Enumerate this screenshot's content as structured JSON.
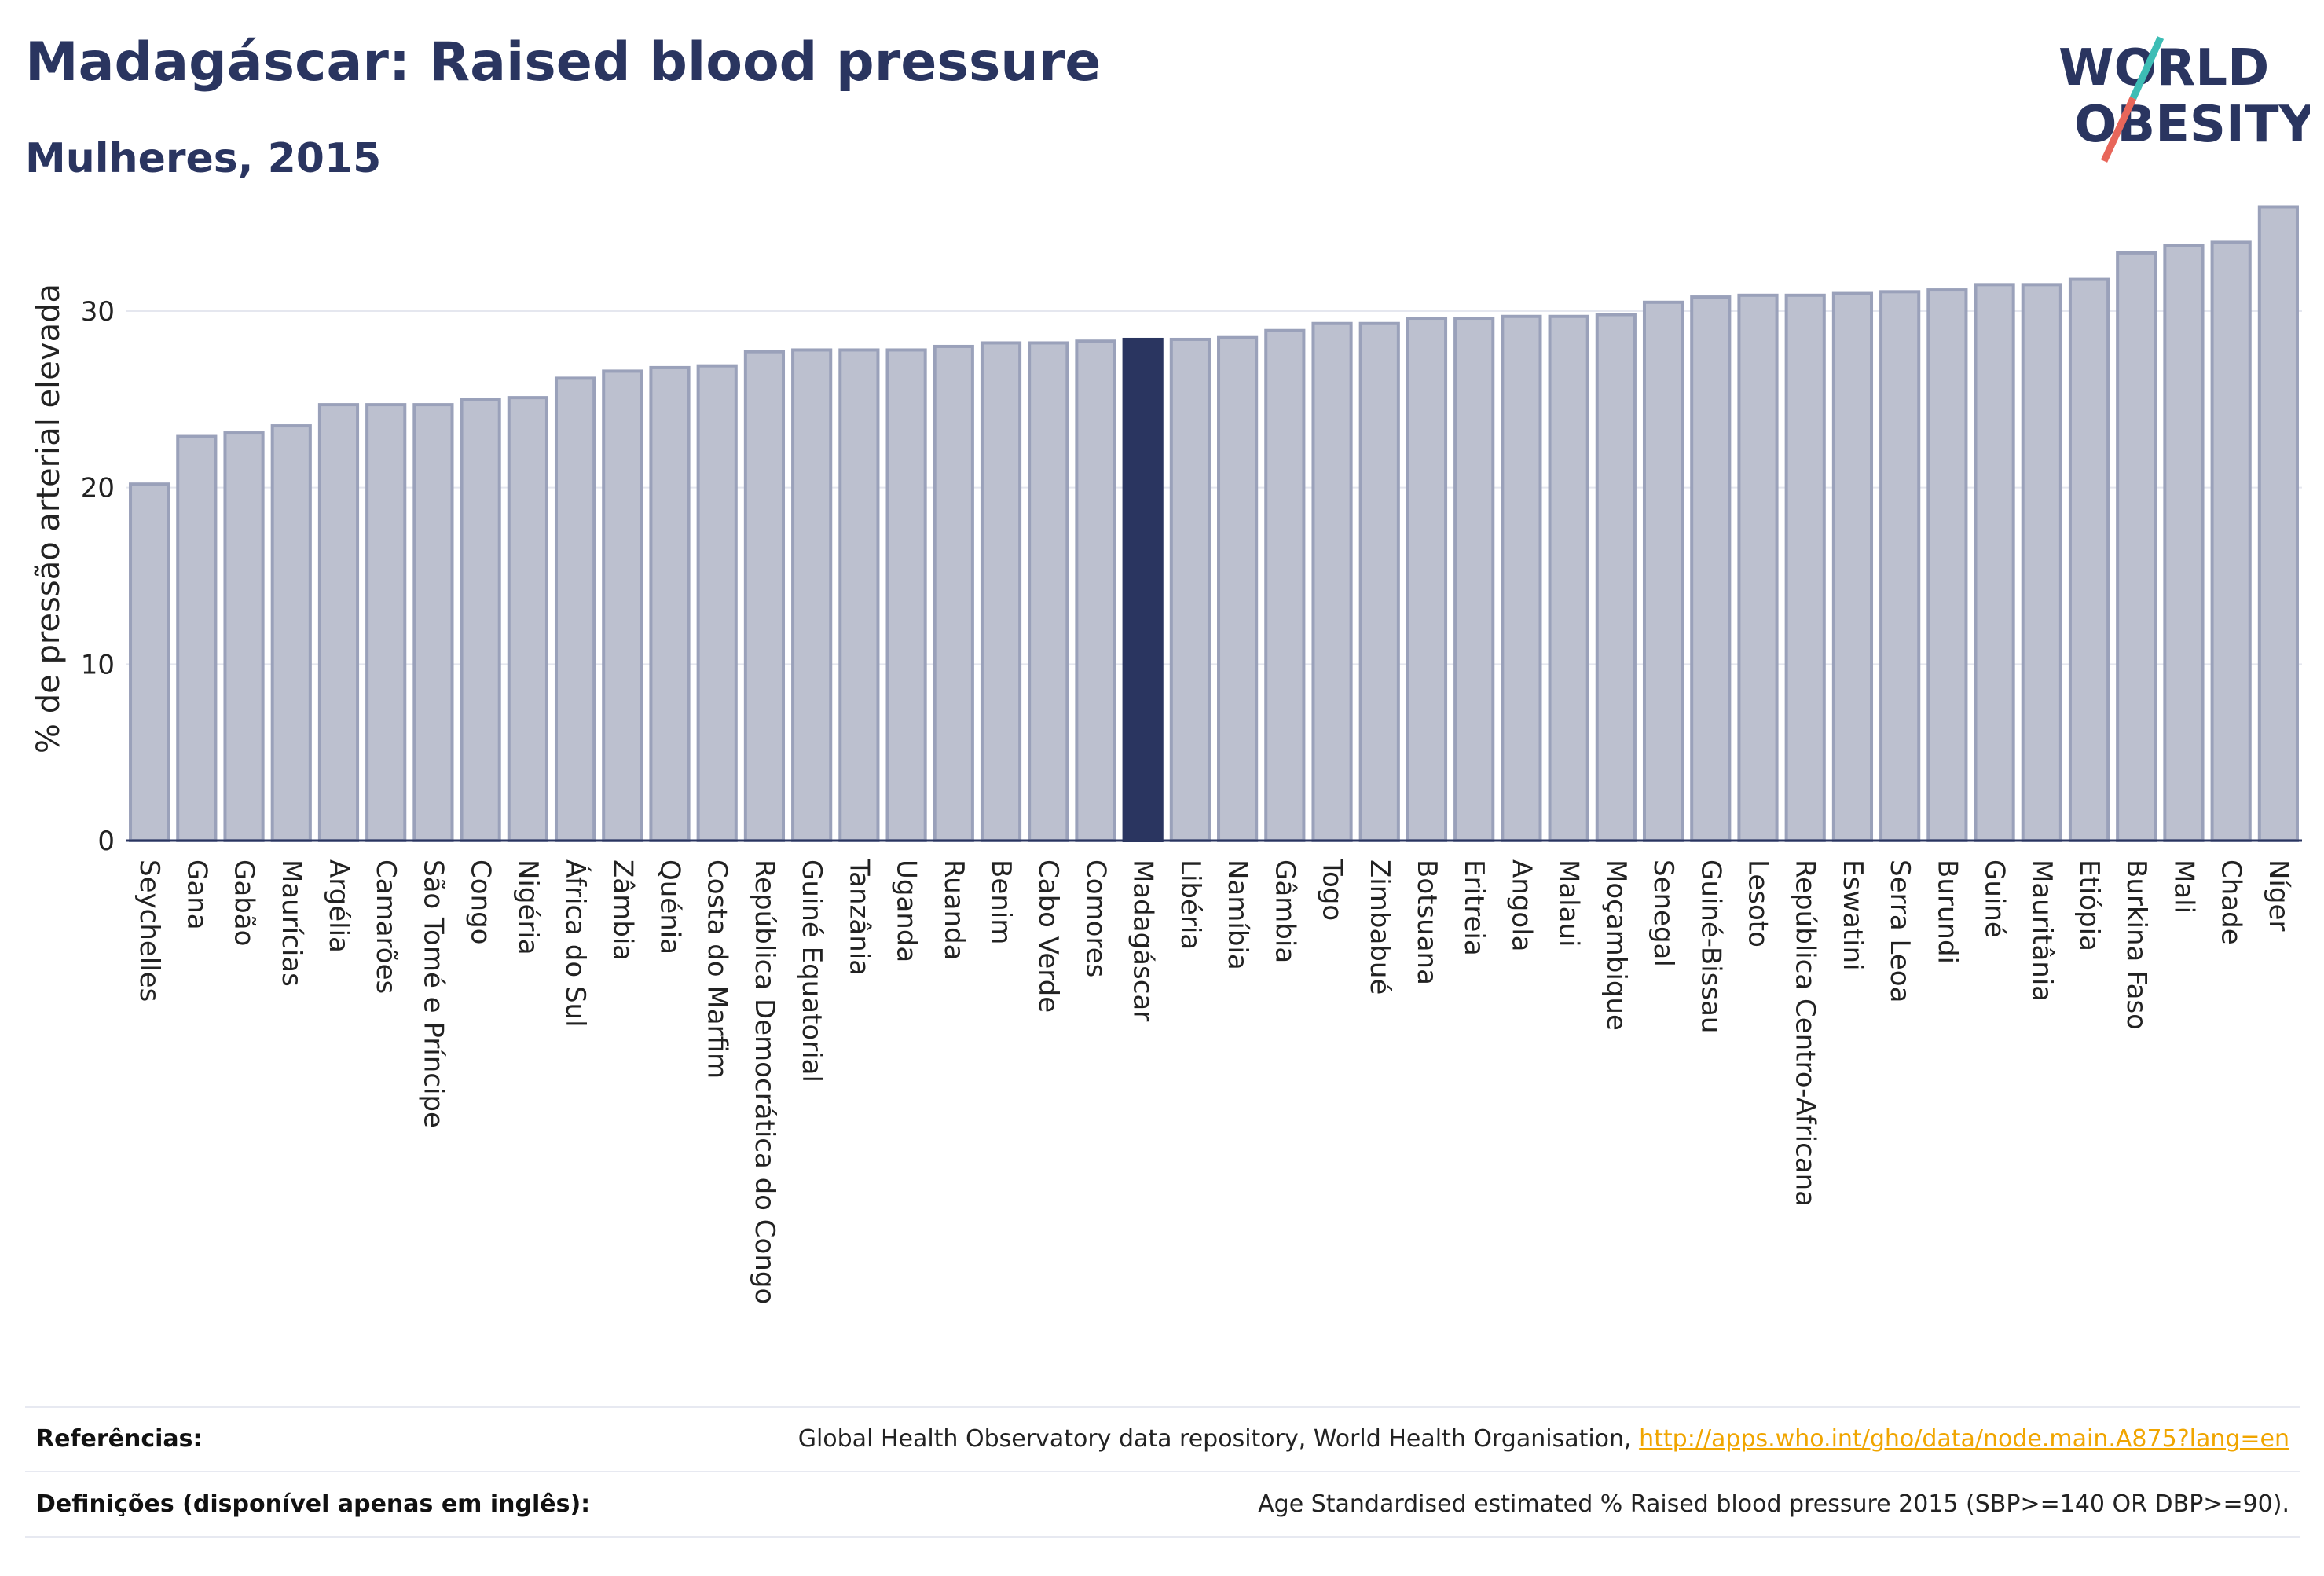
{
  "header": {
    "title": "Madagáscar: Raised blood pressure",
    "subtitle": "Mulheres, 2015"
  },
  "logo": {
    "line1": "WORLD",
    "line2": "OBESITY",
    "colors": {
      "text": "#2a3560",
      "slash_teal": "#3dbdb5",
      "slash_coral": "#e8665a"
    }
  },
  "chart_data": {
    "type": "bar",
    "ylabel": "% de pressão arterial elevada",
    "xlabel": "",
    "ylim": [
      0,
      36.5
    ],
    "yticks": [
      0,
      10,
      20,
      30
    ],
    "grid": true,
    "highlight": "Madagáscar",
    "colors": {
      "bar": "#bcc0cf",
      "bar_edge": "#9aa1ba",
      "highlight": "#2a3560",
      "grid": "#e5e7ef",
      "axis": "#2a3560"
    },
    "categories": [
      "Seychelles",
      "Gana",
      "Gabão",
      "Maurícias",
      "Argélia",
      "Camarões",
      "São Tomé e Príncipe",
      "Congo",
      "Nigéria",
      "África do Sul",
      "Zâmbia",
      "Quénia",
      "Costa do Marfim",
      "República Democrática do Congo",
      "Guiné Equatorial",
      "Tanzânia",
      "Uganda",
      "Ruanda",
      "Benim",
      "Cabo Verde",
      "Comores",
      "Madagáscar",
      "Libéria",
      "Namíbia",
      "Gâmbia",
      "Togo",
      "Zimbabué",
      "Botsuana",
      "Eritreia",
      "Angola",
      "Malaui",
      "Moçambique",
      "Senegal",
      "Guiné-Bissau",
      "Lesoto",
      "República Centro-Africana",
      "Eswatini",
      "Serra Leoa",
      "Burundi",
      "Guiné",
      "Mauritânia",
      "Etiópia",
      "Burkina Faso",
      "Mali",
      "Chade",
      "Níger"
    ],
    "values": [
      20.2,
      22.9,
      23.1,
      23.5,
      24.7,
      24.7,
      24.7,
      25.0,
      25.1,
      26.2,
      26.6,
      26.8,
      26.9,
      27.7,
      27.8,
      27.8,
      27.8,
      28.0,
      28.2,
      28.2,
      28.3,
      28.4,
      28.4,
      28.5,
      28.9,
      29.3,
      29.3,
      29.6,
      29.6,
      29.7,
      29.7,
      29.8,
      30.5,
      30.8,
      30.9,
      30.9,
      31.0,
      31.1,
      31.2,
      31.5,
      31.5,
      31.8,
      33.3,
      33.7,
      33.9,
      35.9
    ]
  },
  "footer": {
    "ref_label": "Referências:",
    "ref_text": "Global Health Observatory data repository, World Health Organisation,",
    "ref_link": "http://apps.who.int/gho/data/node.main.A875?lang=en",
    "def_label": "Definições (disponível apenas em inglês):",
    "def_text": "Age Standardised estimated % Raised blood pressure 2015 (SBP>=140 OR DBP>=90)."
  }
}
